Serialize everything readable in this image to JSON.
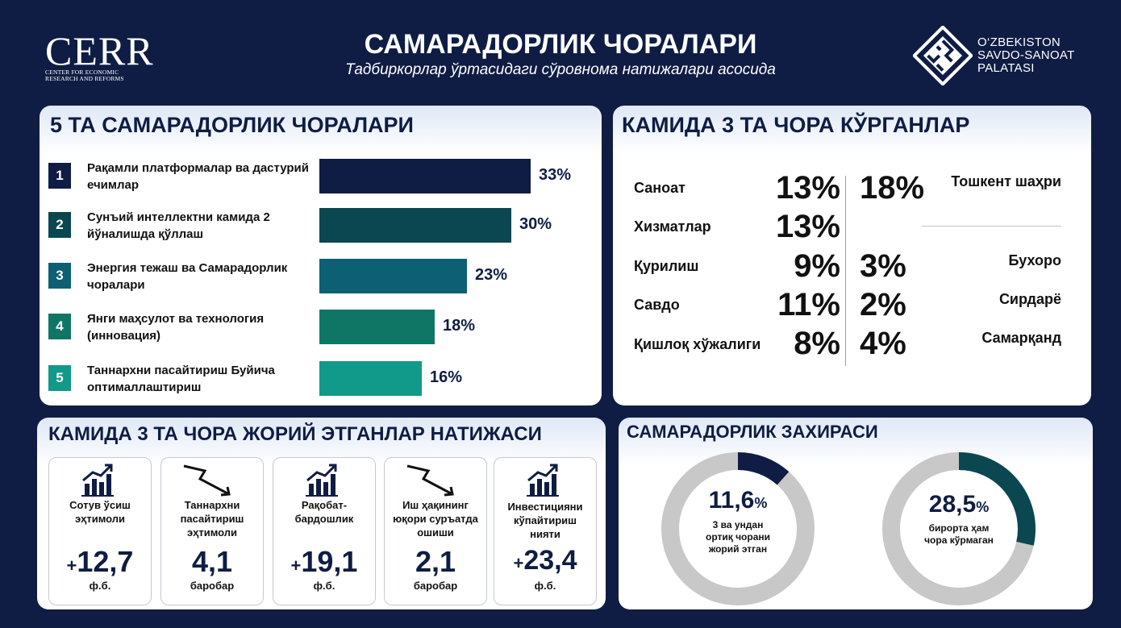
{
  "header": {
    "logo_left_word": "CERR",
    "logo_left_sub": "CENTER FOR ECONOMIC RESEARCH AND REFORMS",
    "title": "САМАРАДОРЛИК ЧОРАЛАРИ",
    "subtitle": "Тадбиркорлар ўртасидаги сўровнома натижалари асосида",
    "logo_right_lines": [
      "O‘ZBEKISTON",
      "SAVDO-SANOAT",
      "PALATASI"
    ]
  },
  "measures": {
    "heading": "5 ТА САМАРАДОРЛИК ЧОРАЛАРИ",
    "items": [
      {
        "num": "1",
        "label": "Рақамли платформалар ва дастурий ечимлар",
        "pct": 33,
        "pct_text": "33%",
        "color": "#0f1d44"
      },
      {
        "num": "2",
        "label": "Сунъий интеллектни камида 2 йўналишда қўллаш",
        "pct": 30,
        "pct_text": "30%",
        "color": "#0b4750"
      },
      {
        "num": "3",
        "label": "Энергия тежаш ва Самарадорлик чоралари",
        "pct": 23,
        "pct_text": "23%",
        "color": "#0d5f73"
      },
      {
        "num": "4",
        "label": "Янги маҳсулот ва технология (инновация)",
        "pct": 18,
        "pct_text": "18%",
        "color": "#0f7666"
      },
      {
        "num": "5",
        "label": "Таннархни пасайтириш Буйича оптималлаштириш",
        "pct": 16,
        "pct_text": "16%",
        "color": "#11998a"
      }
    ]
  },
  "sectors": {
    "heading": "КАМИДА 3 ТА ЧОРА КЎРГАНЛАР",
    "left": [
      {
        "name": "Саноат",
        "pct": "13%"
      },
      {
        "name": "Хизматлар",
        "pct": "13%"
      },
      {
        "name": "Қурилиш",
        "pct": "9%"
      },
      {
        "name": "Савдо",
        "pct": "11%"
      },
      {
        "name": "Қишлоқ хўжалиги",
        "pct": "8%"
      }
    ],
    "right": [
      {
        "name": "Тошкент шаҳри",
        "pct": "18%"
      },
      {
        "name": "Бухоро",
        "pct": "3%"
      },
      {
        "name": "Сирдарё",
        "pct": "2%"
      },
      {
        "name": "Самарқанд",
        "pct": "4%"
      }
    ]
  },
  "results": {
    "heading": "КАМИДА 3 ТА ЧОРА ЖОРИЙ ЭТГАНЛАР НАТИЖАСИ",
    "cards": [
      {
        "label": "Сотув ўсиш эҳтимоли",
        "prefix": "+",
        "value": "12,7",
        "unit": "ф.б.",
        "icon": "growth-chart-icon"
      },
      {
        "label": "Таннархни пасайтириш эҳтимоли",
        "prefix": "",
        "value": "4,1",
        "unit": "баробар",
        "icon": "decline-arrow-icon"
      },
      {
        "label": "Рақобат-бардошлик",
        "prefix": "+",
        "value": "19,1",
        "unit": "ф.б.",
        "icon": "growth-chart-icon"
      },
      {
        "label": "Иш ҳақининг юқори суръатда ошиши",
        "prefix": "",
        "value": "2,1",
        "unit": "баробар",
        "icon": "decline-arrow-icon"
      },
      {
        "label": "Инвестицияни кўпайтириш нияти",
        "prefix": "+",
        "value": "23,4",
        "unit": "ф.б.",
        "icon": "growth-chart-icon"
      }
    ]
  },
  "reserve": {
    "heading": "САМАРАДОРЛИК ЗАХИРАСИ",
    "donuts": [
      {
        "value": "11,6",
        "unit": "%",
        "fraction": 0.116,
        "label": "3 ва ундан ортиқ чорани жорий этган",
        "color": "#0f1d44"
      },
      {
        "value": "28,5",
        "unit": "%",
        "fraction": 0.285,
        "label": "бирорта ҳам чора кўрмаган",
        "color": "#0b4750"
      }
    ]
  }
}
